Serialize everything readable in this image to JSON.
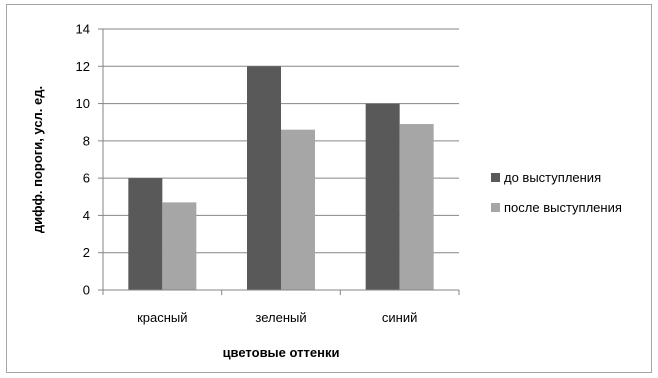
{
  "chart_data": {
    "type": "bar",
    "title": "",
    "xlabel": "цветовые оттенки",
    "ylabel": "дифф. пороги, усл. ед.",
    "categories": [
      "красный",
      "зеленый",
      "синий"
    ],
    "series": [
      {
        "name": "до выступления",
        "values": [
          6.0,
          12.0,
          10.0
        ],
        "color": "#595959"
      },
      {
        "name": "после выступления",
        "values": [
          4.7,
          8.6,
          8.9
        ],
        "color": "#a6a6a6"
      }
    ],
    "ylim": [
      0,
      14
    ],
    "yticks": [
      0,
      2,
      4,
      6,
      8,
      10,
      12,
      14
    ],
    "grid": true,
    "legend_position": "right"
  }
}
